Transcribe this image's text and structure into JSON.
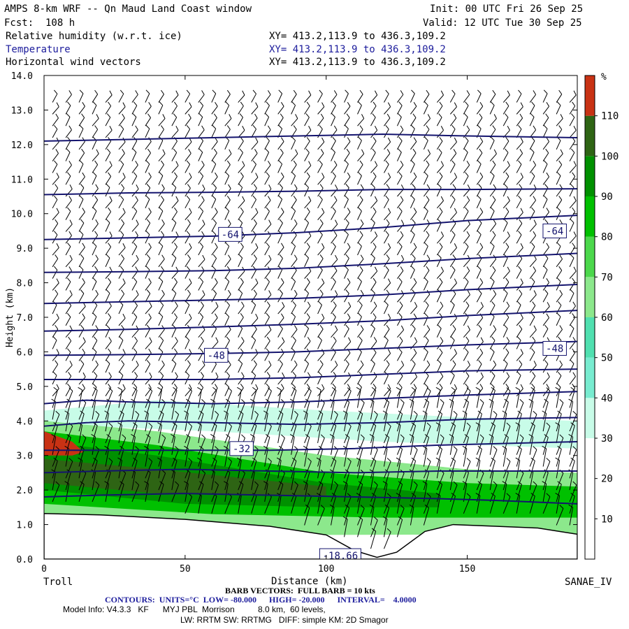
{
  "header": {
    "title": "AMPS 8-km WRF -- Qn Maud Land Coast window",
    "init": "Init: 00 UTC Fri 26 Sep 25",
    "fcst": "Fcst:  108 h",
    "valid": "Valid: 12 UTC Tue 30 Sep 25",
    "fields": [
      {
        "label": "Relative humidity (w.r.t. ice)",
        "xy": "XY= 413.2,113.9 to 436.3,109.2"
      },
      {
        "label": "Temperature",
        "xy": "XY= 413.2,113.9 to 436.3,109.2"
      },
      {
        "label": "Horizontal wind vectors",
        "xy": "XY= 413.2,113.9 to 436.3,109.2"
      }
    ]
  },
  "footer": {
    "barb": "BARB VECTORS:  FULL BARB = 10 kts",
    "contours": "CONTOURS:  UNITS=°C  LOW= -80.000      HIGH= -20.000      INTERVAL=    4.0000",
    "model1": "Model Info: V4.3.3   KF      MYJ PBL  Morrison          8.0 km,  60 levels,",
    "model2": "LW: RRTM SW: RRTMG   DIFF: simple KM: 2D Smagor"
  },
  "chart_data": {
    "type": "heatmap",
    "title": "AMPS 8-km WRF -- Qn Maud Land Coast window",
    "xlabel": "Distance (km)",
    "ylabel": "Height (km)",
    "xlim": [
      0,
      189
    ],
    "ylim": [
      0,
      14
    ],
    "x_ticks": [
      "0",
      "50",
      "100",
      "150"
    ],
    "y_ticks": [
      "0.0",
      "1.0",
      "2.0",
      "3.0",
      "4.0",
      "5.0",
      "6.0",
      "7.0",
      "8.0",
      "9.0",
      "10.0",
      "11.0",
      "12.0",
      "13.0",
      "14.0"
    ],
    "left_endpoint": "Troll",
    "right_endpoint": "SANAE_IV",
    "colorbar": {
      "unit": "%",
      "ticks": [
        "10",
        "20",
        "30",
        "40",
        "50",
        "60",
        "70",
        "80",
        "90",
        "100",
        "110"
      ],
      "colors": [
        "#ffffff",
        "#ffffff",
        "#ffffff",
        "#c8fce8",
        "#78ecd0",
        "#50e0b0",
        "#8ce88c",
        "#4cd84c",
        "#00c000",
        "#009000",
        "#2e6414",
        "#c83214"
      ]
    },
    "terrain_km": [
      [
        0,
        1.32
      ],
      [
        20,
        1.28
      ],
      [
        50,
        1.15
      ],
      [
        80,
        0.95
      ],
      [
        100,
        0.7
      ],
      [
        110,
        0.25
      ],
      [
        118,
        0.05
      ],
      [
        125,
        0.2
      ],
      [
        135,
        0.8
      ],
      [
        145,
        1.0
      ],
      [
        160,
        0.95
      ],
      [
        175,
        0.9
      ],
      [
        189,
        0.72
      ]
    ],
    "temperature_contours": {
      "units": "C",
      "low": -80,
      "high": -20,
      "interval": 4,
      "labels": [
        {
          "text": "-64",
          "x": 66,
          "y": 9.4
        },
        {
          "text": "-64",
          "x": 181,
          "y": 9.5
        },
        {
          "text": "-48",
          "x": 61,
          "y": 5.9
        },
        {
          "text": "-48",
          "x": 181,
          "y": 6.1
        },
        {
          "text": "-32",
          "x": 70,
          "y": 3.2
        },
        {
          "text": "-18.66",
          "x": 105,
          "y": 0.1
        }
      ],
      "lines": [
        {
          "x": [
            0,
            30,
            60,
            90,
            120,
            150,
            189
          ],
          "y": [
            12.1,
            12.15,
            12.2,
            12.25,
            12.3,
            12.25,
            12.2
          ]
        },
        {
          "x": [
            0,
            30,
            60,
            90,
            120,
            150,
            189
          ],
          "y": [
            10.55,
            10.6,
            10.62,
            10.65,
            10.7,
            10.7,
            10.72
          ]
        },
        {
          "x": [
            0,
            30,
            60,
            90,
            120,
            150,
            189
          ],
          "y": [
            9.25,
            9.3,
            9.35,
            9.45,
            9.6,
            9.8,
            9.95
          ]
        },
        {
          "x": [
            0,
            30,
            60,
            90,
            120,
            150,
            189
          ],
          "y": [
            8.3,
            8.32,
            8.35,
            8.42,
            8.55,
            8.7,
            8.85
          ]
        },
        {
          "x": [
            0,
            30,
            60,
            90,
            120,
            150,
            189
          ],
          "y": [
            7.4,
            7.45,
            7.5,
            7.55,
            7.65,
            7.8,
            7.95
          ]
        },
        {
          "x": [
            0,
            30,
            60,
            90,
            120,
            150,
            189
          ],
          "y": [
            6.6,
            6.65,
            6.72,
            6.8,
            6.9,
            7.05,
            7.2
          ]
        },
        {
          "x": [
            0,
            30,
            60,
            90,
            120,
            150,
            189
          ],
          "y": [
            5.9,
            5.92,
            5.95,
            6.0,
            6.1,
            6.2,
            6.3
          ]
        },
        {
          "x": [
            0,
            30,
            60,
            90,
            120,
            150,
            189
          ],
          "y": [
            5.2,
            5.2,
            5.2,
            5.25,
            5.35,
            5.45,
            5.5
          ]
        },
        {
          "x": [
            0,
            15,
            30,
            60,
            90,
            120,
            150,
            189
          ],
          "y": [
            4.5,
            4.6,
            4.55,
            4.5,
            4.55,
            4.65,
            4.75,
            4.85
          ]
        },
        {
          "x": [
            0,
            15,
            30,
            60,
            90,
            120,
            150,
            189
          ],
          "y": [
            3.85,
            3.95,
            4.0,
            3.95,
            3.9,
            3.95,
            4.05,
            4.1
          ]
        },
        {
          "x": [
            0,
            20,
            50,
            80,
            110,
            140,
            189
          ],
          "y": [
            3.15,
            3.15,
            3.15,
            3.15,
            3.2,
            3.3,
            3.4
          ]
        },
        {
          "x": [
            0,
            20,
            50,
            80,
            110,
            140,
            189
          ],
          "y": [
            2.5,
            2.55,
            2.6,
            2.55,
            2.5,
            2.55,
            2.55
          ]
        },
        {
          "x": [
            0,
            20,
            50,
            80,
            110,
            140,
            160,
            189
          ],
          "y": [
            1.8,
            1.85,
            1.9,
            1.85,
            1.8,
            1.75,
            1.7,
            1.6
          ]
        }
      ]
    },
    "rh_regions": [
      {
        "value_pct": 35,
        "color": "#c8fce8",
        "top": [
          [
            0,
            4.3
          ],
          [
            40,
            4.6
          ],
          [
            100,
            4.3
          ],
          [
            150,
            4.1
          ],
          [
            189,
            4.0
          ]
        ],
        "bottom": [
          [
            0,
            3.9
          ],
          [
            60,
            3.7
          ],
          [
            120,
            3.4
          ],
          [
            189,
            3.2
          ]
        ]
      },
      {
        "value_pct": 65,
        "color": "#8ce88c",
        "top": [
          [
            0,
            4.0
          ],
          [
            40,
            3.7
          ],
          [
            100,
            3.0
          ],
          [
            150,
            2.6
          ],
          [
            189,
            2.5
          ]
        ],
        "bottom": [
          [
            0,
            1.32
          ],
          [
            50,
            1.15
          ],
          [
            100,
            0.7
          ],
          [
            189,
            0.72
          ]
        ]
      },
      {
        "value_pct": 85,
        "color": "#00c000",
        "top": [
          [
            0,
            3.7
          ],
          [
            40,
            3.3
          ],
          [
            100,
            2.5
          ],
          [
            150,
            2.2
          ],
          [
            189,
            2.1
          ]
        ],
        "bottom": [
          [
            0,
            1.6
          ],
          [
            60,
            1.3
          ],
          [
            120,
            1.2
          ],
          [
            189,
            1.2
          ]
        ]
      },
      {
        "value_pct": 95,
        "color": "#009000",
        "top": [
          [
            0,
            3.4
          ],
          [
            40,
            3.0
          ],
          [
            100,
            2.2
          ],
          [
            140,
            1.9
          ]
        ],
        "bottom": [
          [
            0,
            2.0
          ],
          [
            50,
            1.6
          ],
          [
            100,
            1.5
          ],
          [
            140,
            1.5
          ]
        ]
      },
      {
        "value_pct": 105,
        "color": "#2e6414",
        "top": [
          [
            0,
            2.9
          ],
          [
            40,
            2.6
          ],
          [
            100,
            2.1
          ]
        ],
        "bottom": [
          [
            0,
            2.2
          ],
          [
            40,
            1.9
          ],
          [
            100,
            1.8
          ]
        ]
      },
      {
        "value_pct": 115,
        "color": "#c83214",
        "top": [
          [
            0,
            3.7
          ],
          [
            10,
            3.4
          ],
          [
            14,
            3.1
          ]
        ],
        "bottom": [
          [
            0,
            3.0
          ],
          [
            10,
            3.0
          ],
          [
            14,
            3.1
          ]
        ]
      }
    ]
  }
}
